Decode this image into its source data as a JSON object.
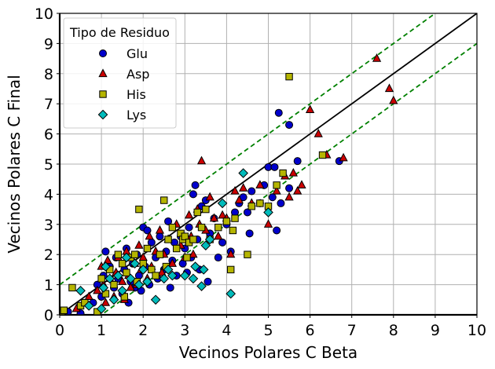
{
  "chart_data": {
    "type": "scatter",
    "xlabel": "Vecinos Polares C Beta",
    "ylabel": "Vecinos Polares C Final",
    "xlim": [
      0,
      10
    ],
    "ylim": [
      0,
      10
    ],
    "xticks": [
      "0",
      "1",
      "2",
      "3",
      "4",
      "5",
      "6",
      "7",
      "8",
      "9",
      "10"
    ],
    "yticks": [
      "0",
      "1",
      "2",
      "3",
      "4",
      "5",
      "6",
      "7",
      "8",
      "9",
      "10"
    ],
    "grid": true,
    "legend": {
      "title": "Tipo de Residuo",
      "placement": "top-left"
    },
    "reference_lines": [
      {
        "kind": "identity",
        "slope": 1,
        "intercept": 0,
        "style": "solid",
        "color": "#000000"
      },
      {
        "kind": "upper-band",
        "slope": 1,
        "intercept": 1,
        "style": "dashed",
        "color": "#008000"
      },
      {
        "kind": "lower-band",
        "slope": 1,
        "intercept": -1,
        "style": "dashed",
        "color": "#008000"
      }
    ],
    "series": [
      {
        "name": "Glu",
        "marker": "circle",
        "color": "#0000cc",
        "points": [
          [
            0.2,
            0.1
          ],
          [
            0.5,
            0.05
          ],
          [
            0.8,
            0.4
          ],
          [
            0.9,
            1.0
          ],
          [
            1.0,
            0.6
          ],
          [
            1.05,
            1.3
          ],
          [
            1.1,
            2.1
          ],
          [
            1.2,
            1.6
          ],
          [
            1.3,
            0.9
          ],
          [
            1.35,
            1.9
          ],
          [
            1.4,
            1.2
          ],
          [
            1.5,
            0.7
          ],
          [
            1.55,
            1.5
          ],
          [
            1.6,
            2.2
          ],
          [
            1.65,
            0.4
          ],
          [
            1.7,
            1.1
          ],
          [
            1.75,
            1.7
          ],
          [
            1.8,
            0.9
          ],
          [
            1.85,
            2.0
          ],
          [
            1.9,
            1.3
          ],
          [
            1.95,
            0.8
          ],
          [
            2.0,
            2.9
          ],
          [
            2.05,
            1.6
          ],
          [
            2.1,
            2.8
          ],
          [
            2.15,
            1.0
          ],
          [
            2.2,
            2.4
          ],
          [
            2.3,
            1.9
          ],
          [
            2.35,
            1.2
          ],
          [
            2.4,
            2.6
          ],
          [
            2.5,
            1.5
          ],
          [
            2.55,
            2.1
          ],
          [
            2.6,
            3.1
          ],
          [
            2.65,
            0.9
          ],
          [
            2.7,
            1.8
          ],
          [
            2.75,
            2.4
          ],
          [
            2.8,
            1.3
          ],
          [
            2.9,
            2.6
          ],
          [
            2.95,
            1.7
          ],
          [
            3.0,
            2.2
          ],
          [
            3.05,
            1.4
          ],
          [
            3.1,
            2.9
          ],
          [
            3.15,
            1.9
          ],
          [
            3.2,
            4.0
          ],
          [
            3.25,
            4.3
          ],
          [
            3.3,
            2.5
          ],
          [
            3.35,
            1.5
          ],
          [
            3.4,
            3.6
          ],
          [
            3.5,
            3.8
          ],
          [
            3.55,
            1.1
          ],
          [
            3.6,
            2.7
          ],
          [
            3.7,
            3.2
          ],
          [
            3.8,
            1.9
          ],
          [
            3.9,
            2.4
          ],
          [
            4.0,
            3.0
          ],
          [
            4.1,
            2.1
          ],
          [
            4.2,
            3.4
          ],
          [
            4.3,
            3.7
          ],
          [
            4.4,
            3.9
          ],
          [
            4.5,
            3.4
          ],
          [
            4.55,
            2.7
          ],
          [
            4.6,
            4.1
          ],
          [
            4.8,
            3.7
          ],
          [
            4.9,
            4.3
          ],
          [
            5.0,
            4.9
          ],
          [
            5.1,
            3.9
          ],
          [
            5.15,
            4.9
          ],
          [
            5.2,
            2.8
          ],
          [
            5.25,
            6.7
          ],
          [
            5.5,
            6.3
          ],
          [
            5.7,
            5.1
          ],
          [
            6.7,
            5.1
          ],
          [
            5.5,
            4.2
          ],
          [
            5.3,
            3.7
          ]
        ]
      },
      {
        "name": "Asp",
        "marker": "triangle",
        "color": "#cc0000",
        "points": [
          [
            0.4,
            0.2
          ],
          [
            0.7,
            0.6
          ],
          [
            0.9,
            0.8
          ],
          [
            1.0,
            1.6
          ],
          [
            1.05,
            1.0
          ],
          [
            1.1,
            0.4
          ],
          [
            1.15,
            1.8
          ],
          [
            1.2,
            1.2
          ],
          [
            1.3,
            0.6
          ],
          [
            1.35,
            1.4
          ],
          [
            1.4,
            1.9
          ],
          [
            1.5,
            1.1
          ],
          [
            1.55,
            0.5
          ],
          [
            1.6,
            2.1
          ],
          [
            1.65,
            1.3
          ],
          [
            1.7,
            0.9
          ],
          [
            1.8,
            1.7
          ],
          [
            1.85,
            1.0
          ],
          [
            1.9,
            2.3
          ],
          [
            1.95,
            1.5
          ],
          [
            2.0,
            1.9
          ],
          [
            2.1,
            1.2
          ],
          [
            2.15,
            2.6
          ],
          [
            2.2,
            1.6
          ],
          [
            2.3,
            2.1
          ],
          [
            2.4,
            2.8
          ],
          [
            2.45,
            1.4
          ],
          [
            2.5,
            2.0
          ],
          [
            2.6,
            2.5
          ],
          [
            2.7,
            1.7
          ],
          [
            2.8,
            3.0
          ],
          [
            2.9,
            2.3
          ],
          [
            3.0,
            1.9
          ],
          [
            3.1,
            3.3
          ],
          [
            3.15,
            2.6
          ],
          [
            3.2,
            2.0
          ],
          [
            3.3,
            3.5
          ],
          [
            3.35,
            3.0
          ],
          [
            3.4,
            5.1
          ],
          [
            3.5,
            2.8
          ],
          [
            3.6,
            3.9
          ],
          [
            3.7,
            3.2
          ],
          [
            3.8,
            2.6
          ],
          [
            3.9,
            3.3
          ],
          [
            4.0,
            3.2
          ],
          [
            4.1,
            2.0
          ],
          [
            4.2,
            4.1
          ],
          [
            4.3,
            3.8
          ],
          [
            4.4,
            4.2
          ],
          [
            4.6,
            3.7
          ],
          [
            4.8,
            4.3
          ],
          [
            5.0,
            3.0
          ],
          [
            5.2,
            4.1
          ],
          [
            5.4,
            4.6
          ],
          [
            5.5,
            3.9
          ],
          [
            5.6,
            4.7
          ],
          [
            5.7,
            4.1
          ],
          [
            5.8,
            4.3
          ],
          [
            6.0,
            6.8
          ],
          [
            6.2,
            6.0
          ],
          [
            6.4,
            5.3
          ],
          [
            6.8,
            5.2
          ],
          [
            7.6,
            8.5
          ],
          [
            7.9,
            7.5
          ],
          [
            8.0,
            7.1
          ]
        ]
      },
      {
        "name": "His",
        "marker": "square",
        "color": "#b5b500",
        "points": [
          [
            0.05,
            0.05
          ],
          [
            0.1,
            0.15
          ],
          [
            0.3,
            0.9
          ],
          [
            0.5,
            0.3
          ],
          [
            0.6,
            0.4
          ],
          [
            0.9,
            0.1
          ],
          [
            1.0,
            1.2
          ],
          [
            1.1,
            0.7
          ],
          [
            1.2,
            1.5
          ],
          [
            1.3,
            1.0
          ],
          [
            1.4,
            2.0
          ],
          [
            1.5,
            1.7
          ],
          [
            1.55,
            0.6
          ],
          [
            1.6,
            1.4
          ],
          [
            1.7,
            1.9
          ],
          [
            1.8,
            2.0
          ],
          [
            1.85,
            1.1
          ],
          [
            1.9,
            3.5
          ],
          [
            2.0,
            1.7
          ],
          [
            2.1,
            2.2
          ],
          [
            2.2,
            1.5
          ],
          [
            2.3,
            1.3
          ],
          [
            2.4,
            2.0
          ],
          [
            2.5,
            3.8
          ],
          [
            2.55,
            1.6
          ],
          [
            2.6,
            2.5
          ],
          [
            2.7,
            2.9
          ],
          [
            2.8,
            2.2
          ],
          [
            2.9,
            2.7
          ],
          [
            2.95,
            2.5
          ],
          [
            3.0,
            2.6
          ],
          [
            3.05,
            1.9
          ],
          [
            3.1,
            2.4
          ],
          [
            3.2,
            2.5
          ],
          [
            3.3,
            3.4
          ],
          [
            3.4,
            2.9
          ],
          [
            3.5,
            3.5
          ],
          [
            3.6,
            2.5
          ],
          [
            3.8,
            2.9
          ],
          [
            4.0,
            3.1
          ],
          [
            4.1,
            1.5
          ],
          [
            4.15,
            2.8
          ],
          [
            4.2,
            3.2
          ],
          [
            4.5,
            2.0
          ],
          [
            4.6,
            3.6
          ],
          [
            4.8,
            3.7
          ],
          [
            5.0,
            3.6
          ],
          [
            5.2,
            4.3
          ],
          [
            5.35,
            4.7
          ],
          [
            5.5,
            7.9
          ],
          [
            6.3,
            5.3
          ]
        ]
      },
      {
        "name": "Lys",
        "marker": "diamond",
        "color": "#00bbbb",
        "points": [
          [
            0.5,
            0.8
          ],
          [
            0.7,
            0.3
          ],
          [
            1.0,
            0.2
          ],
          [
            1.05,
            0.9
          ],
          [
            1.1,
            1.6
          ],
          [
            1.2,
            1.2
          ],
          [
            1.3,
            0.5
          ],
          [
            1.4,
            1.3
          ],
          [
            1.5,
            0.8
          ],
          [
            1.6,
            1.9
          ],
          [
            1.7,
            1.2
          ],
          [
            1.8,
            1.7
          ],
          [
            1.9,
            1.0
          ],
          [
            2.0,
            1.5
          ],
          [
            2.1,
            1.1
          ],
          [
            2.3,
            0.5
          ],
          [
            2.5,
            1.2
          ],
          [
            2.6,
            1.5
          ],
          [
            2.7,
            1.3
          ],
          [
            3.0,
            1.3
          ],
          [
            3.2,
            1.2
          ],
          [
            3.25,
            1.6
          ],
          [
            3.4,
            0.95
          ],
          [
            3.45,
            1.5
          ],
          [
            3.5,
            2.3
          ],
          [
            3.6,
            2.5
          ],
          [
            3.9,
            3.7
          ],
          [
            4.1,
            0.7
          ],
          [
            4.4,
            4.7
          ],
          [
            5.0,
            3.4
          ]
        ]
      }
    ]
  }
}
